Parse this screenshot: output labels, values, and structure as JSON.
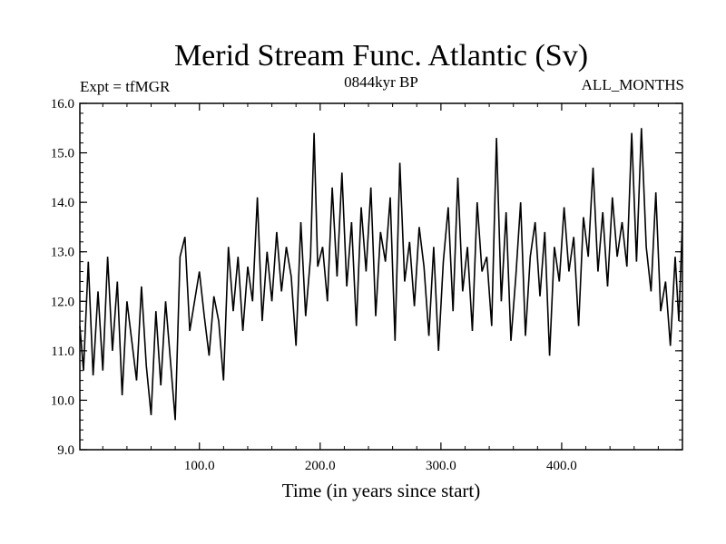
{
  "chart_data": {
    "type": "line",
    "title": "Merid Stream Func. Atlantic (Sv)",
    "subtitle_left": "Expt = tfMGR",
    "subtitle_center": "0844kyr BP",
    "subtitle_right": "ALL_MONTHS",
    "xlabel": "Time (in years since start)",
    "ylabel": "",
    "xlim": [
      1,
      500
    ],
    "ylim": [
      9.0,
      16.0
    ],
    "x_ticks": [
      {
        "value": 100,
        "label": "100.0"
      },
      {
        "value": 200,
        "label": "200.0"
      },
      {
        "value": 300,
        "label": "300.0"
      },
      {
        "value": 400,
        "label": "400.0"
      }
    ],
    "y_ticks": [
      {
        "value": 9.0,
        "label": "9.0"
      },
      {
        "value": 10.0,
        "label": "10.0"
      },
      {
        "value": 11.0,
        "label": "11.0"
      },
      {
        "value": 12.0,
        "label": "12.0"
      },
      {
        "value": 13.0,
        "label": "13.0"
      },
      {
        "value": 14.0,
        "label": "14.0"
      },
      {
        "value": 15.0,
        "label": "15.0"
      },
      {
        "value": 16.0,
        "label": "16.0"
      }
    ],
    "series": [
      {
        "name": "Merid Stream Func. Atlantic",
        "color": "#000000",
        "x": [
          1,
          4,
          8,
          12,
          16,
          20,
          24,
          28,
          32,
          36,
          40,
          44,
          48,
          52,
          56,
          60,
          64,
          68,
          72,
          76,
          80,
          84,
          88,
          92,
          96,
          100,
          104,
          108,
          112,
          116,
          120,
          124,
          128,
          132,
          136,
          140,
          144,
          148,
          152,
          156,
          160,
          164,
          168,
          172,
          176,
          180,
          184,
          188,
          192,
          195,
          198,
          202,
          206,
          210,
          214,
          218,
          222,
          226,
          230,
          234,
          238,
          242,
          246,
          250,
          254,
          258,
          262,
          266,
          270,
          274,
          278,
          282,
          286,
          290,
          294,
          298,
          302,
          306,
          310,
          314,
          318,
          322,
          326,
          330,
          334,
          338,
          342,
          346,
          350,
          354,
          358,
          362,
          366,
          370,
          374,
          378,
          382,
          386,
          390,
          394,
          398,
          402,
          406,
          410,
          414,
          418,
          422,
          426,
          430,
          434,
          438,
          442,
          446,
          450,
          454,
          458,
          462,
          466,
          470,
          474,
          478,
          482,
          486,
          490,
          494,
          497,
          500
        ],
        "values": [
          11.5,
          10.6,
          12.8,
          10.5,
          12.2,
          10.6,
          12.9,
          11.0,
          12.4,
          10.1,
          12.0,
          11.2,
          10.4,
          12.3,
          10.7,
          9.7,
          11.8,
          10.3,
          12.0,
          10.8,
          9.6,
          12.9,
          13.3,
          11.4,
          12.0,
          12.6,
          11.7,
          10.9,
          12.1,
          11.6,
          10.4,
          13.1,
          11.8,
          12.9,
          11.4,
          12.7,
          12.0,
          14.1,
          11.6,
          13.0,
          12.0,
          13.4,
          12.2,
          13.1,
          12.5,
          11.1,
          13.6,
          11.7,
          12.9,
          15.4,
          12.7,
          13.1,
          12.0,
          14.3,
          12.5,
          14.6,
          12.3,
          13.6,
          11.5,
          13.9,
          12.6,
          14.3,
          11.7,
          13.4,
          12.8,
          14.1,
          11.2,
          14.8,
          12.4,
          13.2,
          11.9,
          13.5,
          12.7,
          11.3,
          13.1,
          11.0,
          12.8,
          13.9,
          11.8,
          14.5,
          12.2,
          13.1,
          11.4,
          14.0,
          12.6,
          12.9,
          11.5,
          15.3,
          12.0,
          13.8,
          11.2,
          12.5,
          14.0,
          11.3,
          12.9,
          13.6,
          12.1,
          13.4,
          10.9,
          13.1,
          12.4,
          13.9,
          12.6,
          13.3,
          11.5,
          13.7,
          12.9,
          14.7,
          12.6,
          13.8,
          12.3,
          14.1,
          12.9,
          13.6,
          12.7,
          15.4,
          12.8,
          15.5,
          13.1,
          12.2,
          14.2,
          11.8,
          12.4,
          11.1,
          12.9,
          11.6,
          13.6
        ]
      }
    ]
  }
}
